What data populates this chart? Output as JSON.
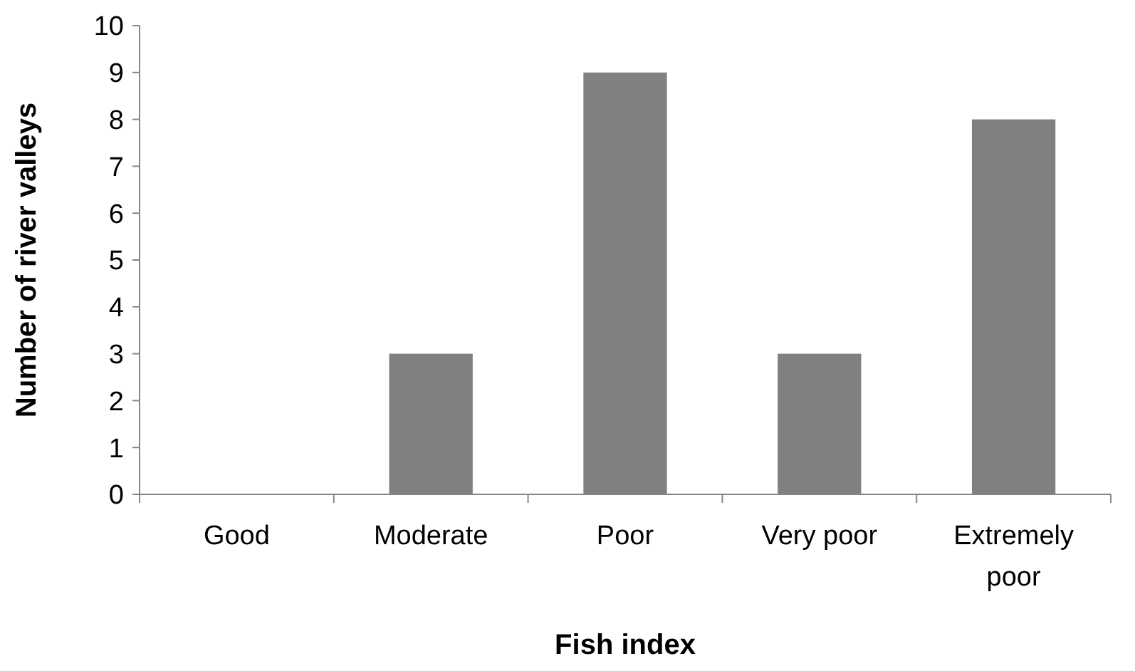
{
  "chart_data": {
    "type": "bar",
    "xlabel": "Fish index",
    "ylabel": "Number of river valleys",
    "categories": [
      "Good",
      "Moderate",
      "Poor",
      "Very poor",
      "Extremely poor"
    ],
    "values": [
      0,
      3,
      9,
      3,
      8
    ],
    "color": "#808080",
    "ylim": [
      0,
      10
    ],
    "yticks": [
      0,
      1,
      2,
      3,
      4,
      5,
      6,
      7,
      8,
      9,
      10
    ]
  }
}
